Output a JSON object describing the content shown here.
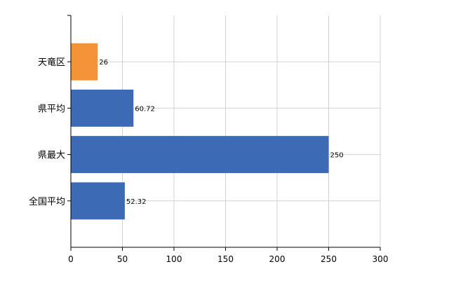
{
  "chart_data": {
    "type": "bar",
    "orientation": "horizontal",
    "categories": [
      "天竜区",
      "県平均",
      "県最大",
      "全国平均"
    ],
    "values": [
      26,
      60.72,
      250,
      52.32
    ],
    "data_labels": [
      "26",
      "60.72",
      "250",
      "52.32"
    ],
    "bar_colors": [
      "#f39237",
      "#3c6ab4",
      "#3c6ab4",
      "#3c6ab4"
    ],
    "xlim": [
      0,
      300
    ],
    "xticks": [
      0,
      50,
      100,
      150,
      200,
      250,
      300
    ],
    "title": "",
    "xlabel": "",
    "ylabel": "",
    "grid": true,
    "legend": "none"
  }
}
